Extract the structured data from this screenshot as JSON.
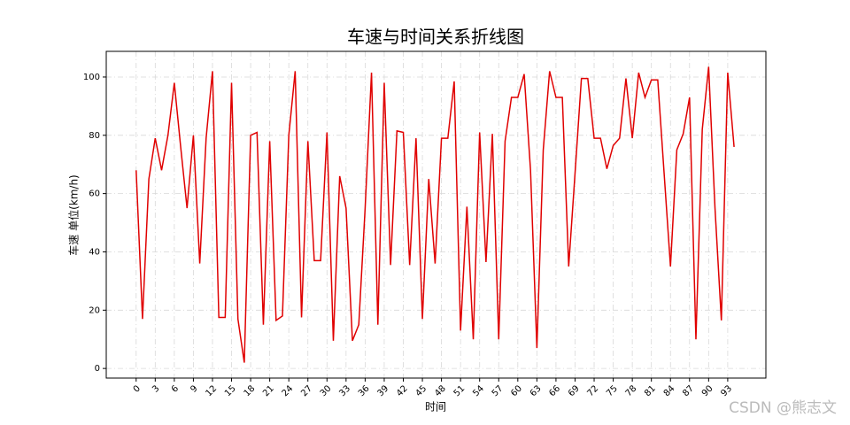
{
  "chart_data": {
    "type": "line",
    "title": "车速与时间关系折线图",
    "xlabel": "时间",
    "ylabel": "车速 单位(km/h)",
    "watermark": "CSDN @熊志文",
    "x": [
      0,
      1,
      2,
      3,
      4,
      5,
      6,
      7,
      8,
      9,
      10,
      11,
      12,
      13,
      14,
      15,
      16,
      17,
      18,
      19,
      20,
      21,
      22,
      23,
      24,
      25,
      26,
      27,
      28,
      29,
      30,
      31,
      32,
      33,
      34,
      35,
      36,
      37,
      38,
      39,
      40,
      41,
      42,
      43,
      44,
      45,
      46,
      47,
      48,
      49,
      50,
      51,
      52,
      53,
      54,
      55,
      56,
      57,
      58,
      59,
      60,
      61,
      62,
      63,
      64,
      65,
      66,
      67,
      68,
      69,
      70,
      71,
      72,
      73,
      74,
      75,
      76,
      77,
      78,
      79,
      80,
      81,
      82,
      83,
      84,
      85,
      86,
      87,
      88,
      89,
      90,
      91,
      92,
      93,
      94
    ],
    "series": [
      {
        "name": "车速",
        "color": "#e00000",
        "values": [
          68,
          17,
          65,
          79,
          68,
          80,
          98,
          76,
          55,
          80,
          36,
          79,
          102,
          17.5,
          17.5,
          98,
          17,
          2,
          80,
          81,
          15,
          78,
          16.5,
          18,
          80,
          102,
          17.5,
          78,
          37,
          37,
          81,
          9.5,
          66,
          55,
          9.5,
          15,
          55,
          101.5,
          15,
          98,
          35.5,
          81.5,
          81,
          35.5,
          79,
          17,
          65,
          36,
          79,
          79,
          98.5,
          13,
          55.5,
          10,
          81,
          36.5,
          80.5,
          10,
          78,
          93,
          93,
          101,
          68,
          7,
          75,
          102,
          93,
          93,
          35,
          67,
          99.5,
          99.5,
          79,
          79,
          68.5,
          76.5,
          79,
          99.5,
          79,
          101.5,
          93,
          99,
          99,
          67,
          35,
          75,
          80.5,
          93,
          10,
          82,
          103.5,
          55,
          16.5,
          101.5,
          76
        ]
      }
    ],
    "xlim": [
      -4.7,
      99
    ],
    "ylim": [
      -3.3,
      108.8
    ],
    "xticks": [
      0,
      3,
      6,
      9,
      12,
      15,
      18,
      21,
      24,
      27,
      30,
      33,
      36,
      39,
      42,
      45,
      48,
      51,
      54,
      57,
      60,
      63,
      66,
      69,
      72,
      75,
      78,
      81,
      84,
      87,
      90,
      93
    ],
    "yticks": [
      0,
      20,
      40,
      60,
      80,
      100
    ],
    "grid": true
  }
}
